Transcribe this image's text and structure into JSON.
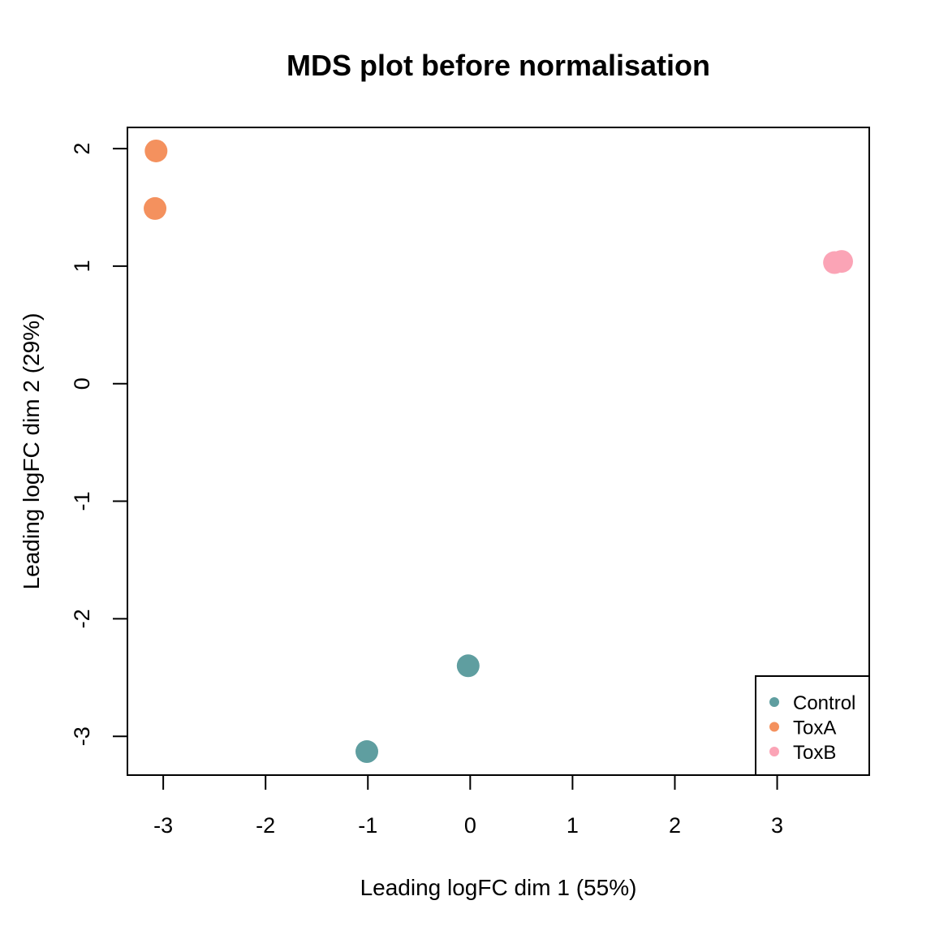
{
  "chart_data": {
    "type": "scatter",
    "title": "MDS plot before normalisation",
    "xlabel": "Leading logFC dim 1 (55%)",
    "ylabel": "Leading logFC dim 2 (29%)",
    "xlim": [
      -3.35,
      3.9
    ],
    "ylim": [
      -3.33,
      2.18
    ],
    "x_ticks": [
      -3,
      -2,
      -1,
      0,
      1,
      2,
      3
    ],
    "y_ticks": [
      -3,
      -2,
      -1,
      0,
      1,
      2
    ],
    "grid": false,
    "legend_position": "bottom-right",
    "series": [
      {
        "name": "Control",
        "color": "#5F9EA0",
        "points": [
          [
            -0.02,
            -2.4
          ],
          [
            -1.01,
            -3.13
          ]
        ]
      },
      {
        "name": "ToxA",
        "color": "#F4915E",
        "points": [
          [
            -3.07,
            1.98
          ],
          [
            -3.08,
            1.49
          ]
        ]
      },
      {
        "name": "ToxB",
        "color": "#FBA4B6",
        "points": [
          [
            3.56,
            1.03
          ],
          [
            3.63,
            1.04
          ]
        ]
      }
    ]
  }
}
